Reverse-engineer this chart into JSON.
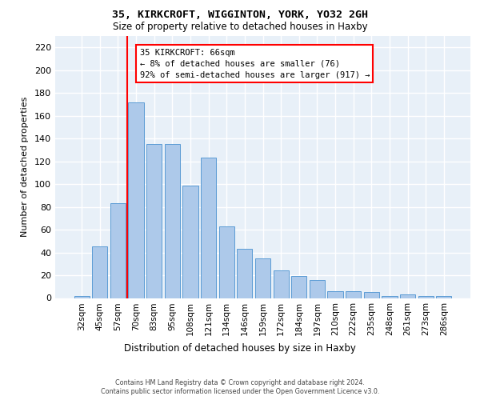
{
  "title1": "35, KIRKCROFT, WIGGINTON, YORK, YO32 2GH",
  "title2": "Size of property relative to detached houses in Haxby",
  "xlabel": "Distribution of detached houses by size in Haxby",
  "ylabel": "Number of detached properties",
  "bar_labels": [
    "32sqm",
    "45sqm",
    "57sqm",
    "70sqm",
    "83sqm",
    "95sqm",
    "108sqm",
    "121sqm",
    "134sqm",
    "146sqm",
    "159sqm",
    "172sqm",
    "184sqm",
    "197sqm",
    "210sqm",
    "222sqm",
    "235sqm",
    "248sqm",
    "261sqm",
    "273sqm",
    "286sqm"
  ],
  "bar_heights": [
    2,
    45,
    83,
    172,
    135,
    135,
    99,
    123,
    63,
    43,
    35,
    24,
    19,
    16,
    6,
    6,
    5,
    2,
    3,
    2,
    2
  ],
  "bar_color": "#adc9ea",
  "bar_edge_color": "#5b9bd5",
  "vline_position": 2.5,
  "vline_color": "red",
  "annotation_text": "35 KIRKCROFT: 66sqm\n← 8% of detached houses are smaller (76)\n92% of semi-detached houses are larger (917) →",
  "bg_color": "#e8f0f8",
  "ylim_max": 230,
  "yticks": [
    0,
    20,
    40,
    60,
    80,
    100,
    120,
    140,
    160,
    180,
    200,
    220
  ],
  "footer1": "Contains HM Land Registry data © Crown copyright and database right 2024.",
  "footer2": "Contains public sector information licensed under the Open Government Licence v3.0."
}
